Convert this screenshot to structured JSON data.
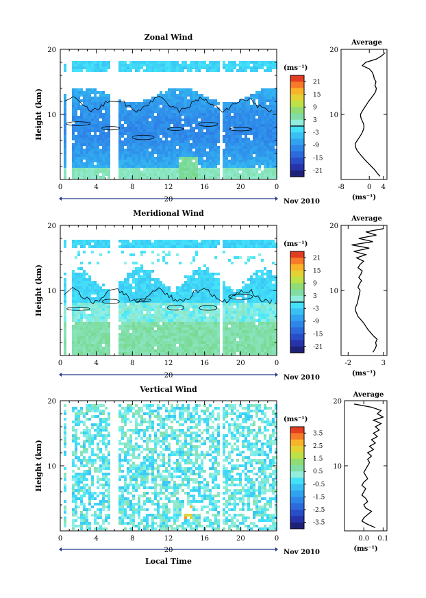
{
  "figure": {
    "x_axis_label": "Local Time",
    "date_label": "Nov 2010",
    "day_label": "20",
    "color_bar_unit": "(ms⁻¹)",
    "profile_unit": "(ms⁻¹)",
    "profile_title": "Average"
  },
  "chart_data": [
    {
      "type": "heatmap",
      "title": "Zonal Wind",
      "ylabel": "Height (km)",
      "xlabel": "Local Time",
      "x_ticks": [
        "0",
        "4",
        "8",
        "12",
        "16",
        "20",
        "0"
      ],
      "y_ticks": [
        "10",
        "20"
      ],
      "xlim": [
        0,
        24
      ],
      "ylim": [
        0,
        20
      ],
      "colorbar_ticks": [
        "21",
        "15",
        "9",
        "3",
        "-3",
        "-9",
        "-15",
        "-21"
      ],
      "colorbar_range": [
        -24,
        24
      ],
      "contour": "0",
      "data_gaps_hours": [
        [
          0.5,
          1.0
        ],
        [
          5.5,
          6.3
        ],
        [
          17.6,
          18.0
        ]
      ],
      "profile": {
        "title": "Average",
        "x_ticks": [
          "-8",
          "0",
          "4"
        ],
        "xlim": [
          -8,
          5
        ],
        "heights_km": [
          0.5,
          1,
          1.5,
          2,
          2.5,
          3,
          3.5,
          4,
          4.5,
          5,
          5.5,
          6,
          6.5,
          7,
          7.5,
          8,
          8.5,
          9,
          9.5,
          10,
          10.5,
          11,
          11.5,
          12,
          12.5,
          13,
          13.5,
          14,
          14.5,
          15,
          15.5,
          16,
          16.5,
          17,
          17.5,
          18,
          18.5,
          19,
          19.5
        ],
        "values": [
          3.0,
          2.2,
          1.5,
          0.6,
          -0.3,
          -1.2,
          -2.0,
          -2.8,
          -3.5,
          -3.9,
          -4.0,
          -3.4,
          -2.8,
          -2.2,
          -1.8,
          -1.5,
          -1.6,
          -2.0,
          -2.4,
          -2.5,
          -2.0,
          -1.4,
          -0.8,
          -0.2,
          0.5,
          1.2,
          1.8,
          2.0,
          1.6,
          1.9,
          1.4,
          1.2,
          0.8,
          0.0,
          -2.0,
          -1.0,
          2.0,
          3.5,
          4.5
        ]
      }
    },
    {
      "type": "heatmap",
      "title": "Meridional Wind",
      "ylabel": "Height (km)",
      "xlabel": "Local Time",
      "x_ticks": [
        "0",
        "4",
        "8",
        "12",
        "16",
        "20",
        "0"
      ],
      "y_ticks": [
        "10",
        "20"
      ],
      "xlim": [
        0,
        24
      ],
      "ylim": [
        0,
        20
      ],
      "colorbar_ticks": [
        "21",
        "15",
        "9",
        "3",
        "-3",
        "-9",
        "-15",
        "-21"
      ],
      "colorbar_range": [
        -24,
        24
      ],
      "contour": "0",
      "data_gaps_hours": [
        [
          0.5,
          1.0
        ],
        [
          5.5,
          6.3
        ],
        [
          17.6,
          18.0
        ]
      ],
      "profile": {
        "title": "Average",
        "x_ticks": [
          "-2",
          "3"
        ],
        "xlim": [
          -3,
          3.5
        ],
        "heights_km": [
          0.5,
          1,
          1.5,
          2,
          2.5,
          3,
          3.5,
          4,
          4.5,
          5,
          5.5,
          6,
          6.5,
          7,
          7.5,
          8,
          8.5,
          9,
          9.5,
          10,
          10.5,
          11,
          11.5,
          12,
          12.5,
          13,
          13.5,
          14,
          14.5,
          15,
          15.5,
          16,
          16.5,
          17,
          17.5,
          18,
          18.5,
          19,
          19.5
        ],
        "values": [
          1.5,
          1.8,
          2.0,
          1.9,
          2.1,
          1.6,
          1.2,
          0.8,
          0.5,
          0.2,
          -0.2,
          -0.6,
          -0.8,
          -1.0,
          -0.9,
          -0.7,
          -0.6,
          -0.5,
          -0.4,
          -0.3,
          -0.6,
          -0.4,
          -0.1,
          -0.5,
          -0.2,
          0.0,
          -0.6,
          -0.3,
          0.2,
          -0.8,
          0.5,
          -1.2,
          1.0,
          -1.5,
          1.5,
          -0.5,
          2.0,
          0.5,
          3.0
        ]
      }
    },
    {
      "type": "heatmap",
      "title": "Vertical Wind",
      "ylabel": "Height (km)",
      "xlabel": "Local Time",
      "x_ticks": [
        "0",
        "4",
        "8",
        "12",
        "16",
        "20",
        "0"
      ],
      "y_ticks": [
        "10",
        "20"
      ],
      "xlim": [
        0,
        24
      ],
      "ylim": [
        0,
        20
      ],
      "colorbar_ticks": [
        "3.5",
        "2.5",
        "1.5",
        "0.5",
        "-0.5",
        "-1.5",
        "-2.5",
        "-3.5"
      ],
      "colorbar_range": [
        -4,
        4
      ],
      "data_gaps_hours": [
        [
          0.5,
          1.0
        ],
        [
          5.5,
          6.3
        ],
        [
          17.6,
          18.0
        ]
      ],
      "profile": {
        "title": "Average",
        "x_ticks": [
          "0.0",
          "0.1"
        ],
        "xlim": [
          -0.1,
          0.12
        ],
        "heights_km": [
          0.5,
          1,
          1.5,
          2,
          2.5,
          3,
          3.5,
          4,
          4.5,
          5,
          5.5,
          6,
          6.5,
          7,
          7.5,
          8,
          8.5,
          9,
          9.5,
          10,
          10.5,
          11,
          11.5,
          12,
          12.5,
          13,
          13.5,
          14,
          14.5,
          15,
          15.5,
          16,
          16.5,
          17,
          17.5,
          18,
          18.5,
          19,
          19.5
        ],
        "values": [
          0.06,
          0.02,
          -0.01,
          0.0,
          0.02,
          0.04,
          0.01,
          0.0,
          0.02,
          0.01,
          -0.01,
          0.0,
          0.01,
          -0.01,
          0.0,
          0.02,
          0.01,
          0.0,
          0.01,
          0.02,
          0.03,
          0.02,
          0.04,
          0.02,
          0.05,
          0.03,
          0.06,
          0.04,
          0.07,
          0.05,
          0.08,
          0.06,
          0.09,
          0.05,
          0.1,
          0.07,
          0.09,
          0.04,
          -0.05
        ]
      }
    }
  ]
}
